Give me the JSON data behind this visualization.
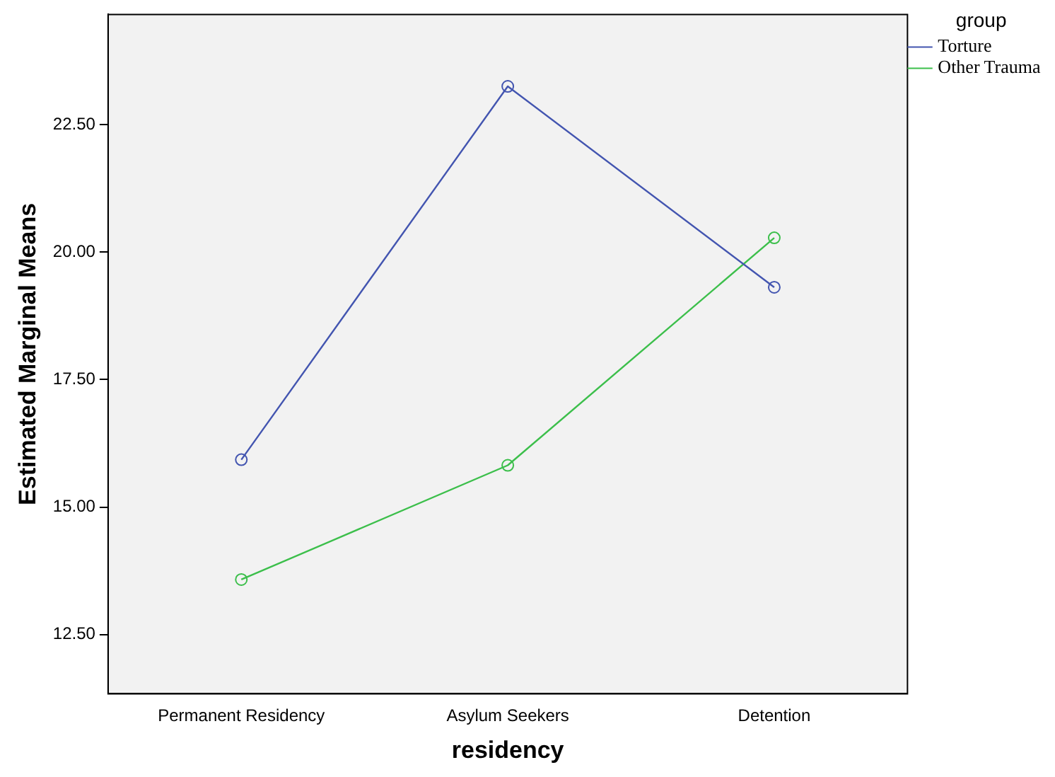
{
  "chart_data": {
    "type": "line",
    "xlabel": "residency",
    "ylabel": "Estimated Marginal Means",
    "legend_title": "group",
    "legend": "top right",
    "marker": "circle",
    "line_style": "solid",
    "grid": false,
    "categories": [
      "Permanent Residency",
      "Asylum Seekers",
      "Detention"
    ],
    "series": [
      {
        "name": "Torture",
        "color": "#4355b0",
        "values": [
          15.93,
          23.25,
          19.31
        ]
      },
      {
        "name": "Other Trauma",
        "color": "#3cbf4b",
        "values": [
          13.58,
          15.82,
          20.28
        ]
      }
    ],
    "ylim": [
      11.34,
      24.66
    ],
    "yticks": [
      {
        "value": 12.5,
        "label": "12.50"
      },
      {
        "value": 15,
        "label": "15.00"
      },
      {
        "value": 17.5,
        "label": "17.50"
      },
      {
        "value": 20,
        "label": "20.00"
      },
      {
        "value": 22.5,
        "label": "22.50"
      }
    ]
  }
}
